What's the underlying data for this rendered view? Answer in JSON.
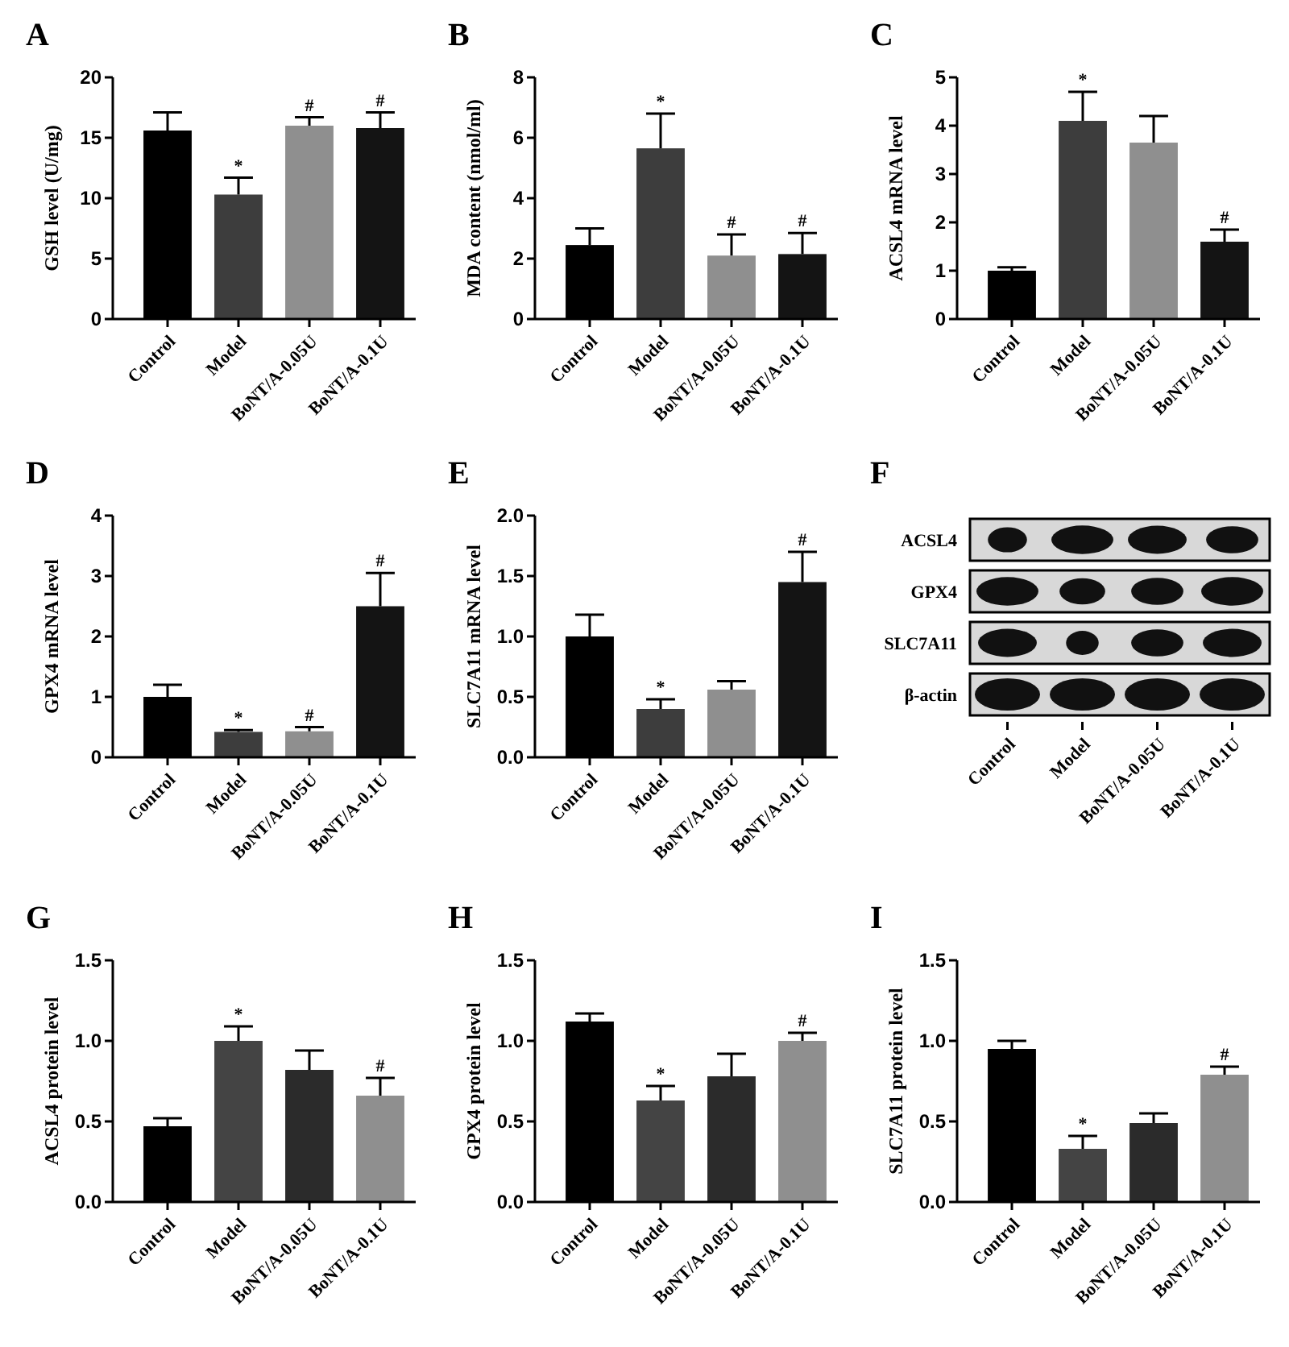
{
  "chart_data": [
    {
      "type": "bar",
      "title": "A",
      "ylabel": "GSH level  (U/mg)",
      "categories": [
        "Control",
        "Model",
        "BoNT/A-0.05U",
        "BoNT/A-0.1U"
      ],
      "values": [
        15.6,
        10.3,
        16.0,
        15.8
      ],
      "colors": [
        "#000000",
        "#3d3d3d",
        "#8f8f8f",
        "#141414"
      ],
      "errors": [
        [
          15.6,
          17.1
        ],
        [
          10.3,
          11.7
        ],
        [
          16.0,
          16.7
        ],
        [
          15.8,
          17.1
        ]
      ],
      "ylim": [
        0,
        20
      ],
      "yticks": [
        0,
        5,
        10,
        15,
        20
      ],
      "annotations": [
        {
          "text": "*",
          "x": "Model",
          "y": 11.7
        },
        {
          "text": "#",
          "x": "BoNT/A-0.05U",
          "y": 16.7
        },
        {
          "text": "#",
          "x": "BoNT/A-0.1U",
          "y": 17.1
        }
      ]
    },
    {
      "type": "bar",
      "title": "B",
      "ylabel": "MDA content (nmol/ml)",
      "categories": [
        "Control",
        "Model",
        "BoNT/A-0.05U",
        "BoNT/A-0.1U"
      ],
      "values": [
        2.45,
        5.65,
        2.1,
        2.15
      ],
      "colors": [
        "#000000",
        "#3d3d3d",
        "#8f8f8f",
        "#141414"
      ],
      "errors": [
        [
          2.45,
          3.0
        ],
        [
          5.65,
          6.8
        ],
        [
          2.1,
          2.8
        ],
        [
          2.15,
          2.85
        ]
      ],
      "ylim": [
        0,
        8
      ],
      "yticks": [
        0,
        2,
        4,
        6,
        8
      ],
      "annotations": [
        {
          "text": "*",
          "x": "Model",
          "y": 6.8
        },
        {
          "text": "#",
          "x": "BoNT/A-0.05U",
          "y": 2.8
        },
        {
          "text": "#",
          "x": "BoNT/A-0.1U",
          "y": 2.85
        }
      ]
    },
    {
      "type": "bar",
      "title": "C",
      "ylabel": "ACSL4 mRNA level",
      "categories": [
        "Control",
        "Model",
        "BoNT/A-0.05U",
        "BoNT/A-0.1U"
      ],
      "values": [
        1.0,
        4.1,
        3.65,
        1.6
      ],
      "colors": [
        "#000000",
        "#3d3d3d",
        "#8f8f8f",
        "#141414"
      ],
      "errors": [
        [
          1.0,
          1.07
        ],
        [
          4.1,
          4.7
        ],
        [
          3.65,
          4.2
        ],
        [
          1.6,
          1.85
        ]
      ],
      "ylim": [
        0,
        5
      ],
      "yticks": [
        0,
        1,
        2,
        3,
        4,
        5
      ],
      "annotations": [
        {
          "text": "*",
          "x": "Model",
          "y": 4.7
        },
        {
          "text": "#",
          "x": "BoNT/A-0.1U",
          "y": 1.85
        }
      ]
    },
    {
      "type": "bar",
      "title": "D",
      "ylabel": "GPX4 mRNA level",
      "categories": [
        "Control",
        "Model",
        "BoNT/A-0.05U",
        "BoNT/A-0.1U"
      ],
      "values": [
        1.0,
        0.42,
        0.43,
        2.5
      ],
      "colors": [
        "#000000",
        "#3d3d3d",
        "#8f8f8f",
        "#141414"
      ],
      "errors": [
        [
          1.0,
          1.2
        ],
        [
          0.42,
          0.45
        ],
        [
          0.43,
          0.5
        ],
        [
          2.5,
          3.05
        ]
      ],
      "ylim": [
        0,
        4
      ],
      "yticks": [
        0,
        1,
        2,
        3,
        4
      ],
      "annotations": [
        {
          "text": "*",
          "x": "Model",
          "y": 0.45
        },
        {
          "text": "#",
          "x": "BoNT/A-0.05U",
          "y": 0.5
        },
        {
          "text": "#",
          "x": "BoNT/A-0.1U",
          "y": 3.05
        }
      ]
    },
    {
      "type": "bar",
      "title": "E",
      "ylabel": "SLC7A11 mRNA level",
      "categories": [
        "Control",
        "Model",
        "BoNT/A-0.05U",
        "BoNT/A-0.1U"
      ],
      "values": [
        1.0,
        0.4,
        0.56,
        1.45
      ],
      "colors": [
        "#000000",
        "#3d3d3d",
        "#8f8f8f",
        "#141414"
      ],
      "errors": [
        [
          1.0,
          1.18
        ],
        [
          0.4,
          0.48
        ],
        [
          0.56,
          0.63
        ],
        [
          1.45,
          1.7
        ]
      ],
      "ylim": [
        0,
        2
      ],
      "yticks": [
        {
          "value": 0,
          "label": "0.0"
        },
        {
          "value": 0.5,
          "label": "0.5"
        },
        {
          "value": 1,
          "label": "1.0"
        },
        {
          "value": 1.5,
          "label": "1.5"
        },
        {
          "value": 2,
          "label": "2.0"
        }
      ],
      "annotations": [
        {
          "text": "*",
          "x": "Model",
          "y": 0.48
        },
        {
          "text": "#",
          "x": "BoNT/A-0.1U",
          "y": 1.7
        }
      ]
    },
    {
      "type": "other",
      "title": "F",
      "categories": [
        "Control",
        "Model",
        "BoNT/A-0.05U",
        "BoNT/A-0.1U"
      ],
      "annotations": [
        "ACSL4",
        "GPX4",
        "SLC7A11",
        "β-actin"
      ]
    },
    {
      "type": "bar",
      "title": "G",
      "ylabel": "ACSL4 protein level",
      "categories": [
        "Control",
        "Model",
        "BoNT/A-0.05U",
        "BoNT/A-0.1U"
      ],
      "values": [
        0.47,
        1.0,
        0.82,
        0.66
      ],
      "colors": [
        "#000000",
        "#444444",
        "#2b2b2b",
        "#8f8f8f"
      ],
      "errors": [
        [
          0.47,
          0.52
        ],
        [
          1.0,
          1.09
        ],
        [
          0.82,
          0.94
        ],
        [
          0.66,
          0.77
        ]
      ],
      "ylim": [
        0,
        1.5
      ],
      "yticks": [
        {
          "value": 0,
          "label": "0.0"
        },
        {
          "value": 0.5,
          "label": "0.5"
        },
        {
          "value": 1,
          "label": "1.0"
        },
        {
          "value": 1.5,
          "label": "1.5"
        }
      ],
      "annotations": [
        {
          "text": "*",
          "x": "Model",
          "y": 1.09
        },
        {
          "text": "#",
          "x": "BoNT/A-0.1U",
          "y": 0.77
        }
      ]
    },
    {
      "type": "bar",
      "title": "H",
      "ylabel": "GPX4 protein level",
      "categories": [
        "Control",
        "Model",
        "BoNT/A-0.05U",
        "BoNT/A-0.1U"
      ],
      "values": [
        1.12,
        0.63,
        0.78,
        1.0
      ],
      "colors": [
        "#000000",
        "#444444",
        "#2b2b2b",
        "#8f8f8f"
      ],
      "errors": [
        [
          1.12,
          1.17
        ],
        [
          0.63,
          0.72
        ],
        [
          0.78,
          0.92
        ],
        [
          1.0,
          1.05
        ]
      ],
      "ylim": [
        0,
        1.5
      ],
      "yticks": [
        {
          "value": 0,
          "label": "0.0"
        },
        {
          "value": 0.5,
          "label": "0.5"
        },
        {
          "value": 1,
          "label": "1.0"
        },
        {
          "value": 1.5,
          "label": "1.5"
        }
      ],
      "annotations": [
        {
          "text": "*",
          "x": "Model",
          "y": 0.72
        },
        {
          "text": "#",
          "x": "BoNT/A-0.1U",
          "y": 1.05
        }
      ]
    },
    {
      "type": "bar",
      "title": "I",
      "ylabel": "SLC7A11 protein level",
      "categories": [
        "Control",
        "Model",
        "BoNT/A-0.05U",
        "BoNT/A-0.1U"
      ],
      "values": [
        0.95,
        0.33,
        0.49,
        0.79
      ],
      "colors": [
        "#000000",
        "#444444",
        "#2b2b2b",
        "#8f8f8f"
      ],
      "errors": [
        [
          0.95,
          1.0
        ],
        [
          0.33,
          0.41
        ],
        [
          0.49,
          0.55
        ],
        [
          0.79,
          0.84
        ]
      ],
      "ylim": [
        0,
        1.5
      ],
      "yticks": [
        {
          "value": 0,
          "label": "0.0"
        },
        {
          "value": 0.5,
          "label": "0.5"
        },
        {
          "value": 1,
          "label": "1.0"
        },
        {
          "value": 1.5,
          "label": "1.5"
        }
      ],
      "annotations": [
        {
          "text": "*",
          "x": "Model",
          "y": 0.41
        },
        {
          "text": "#",
          "x": "BoNT/A-0.1U",
          "y": 0.84
        }
      ]
    }
  ]
}
